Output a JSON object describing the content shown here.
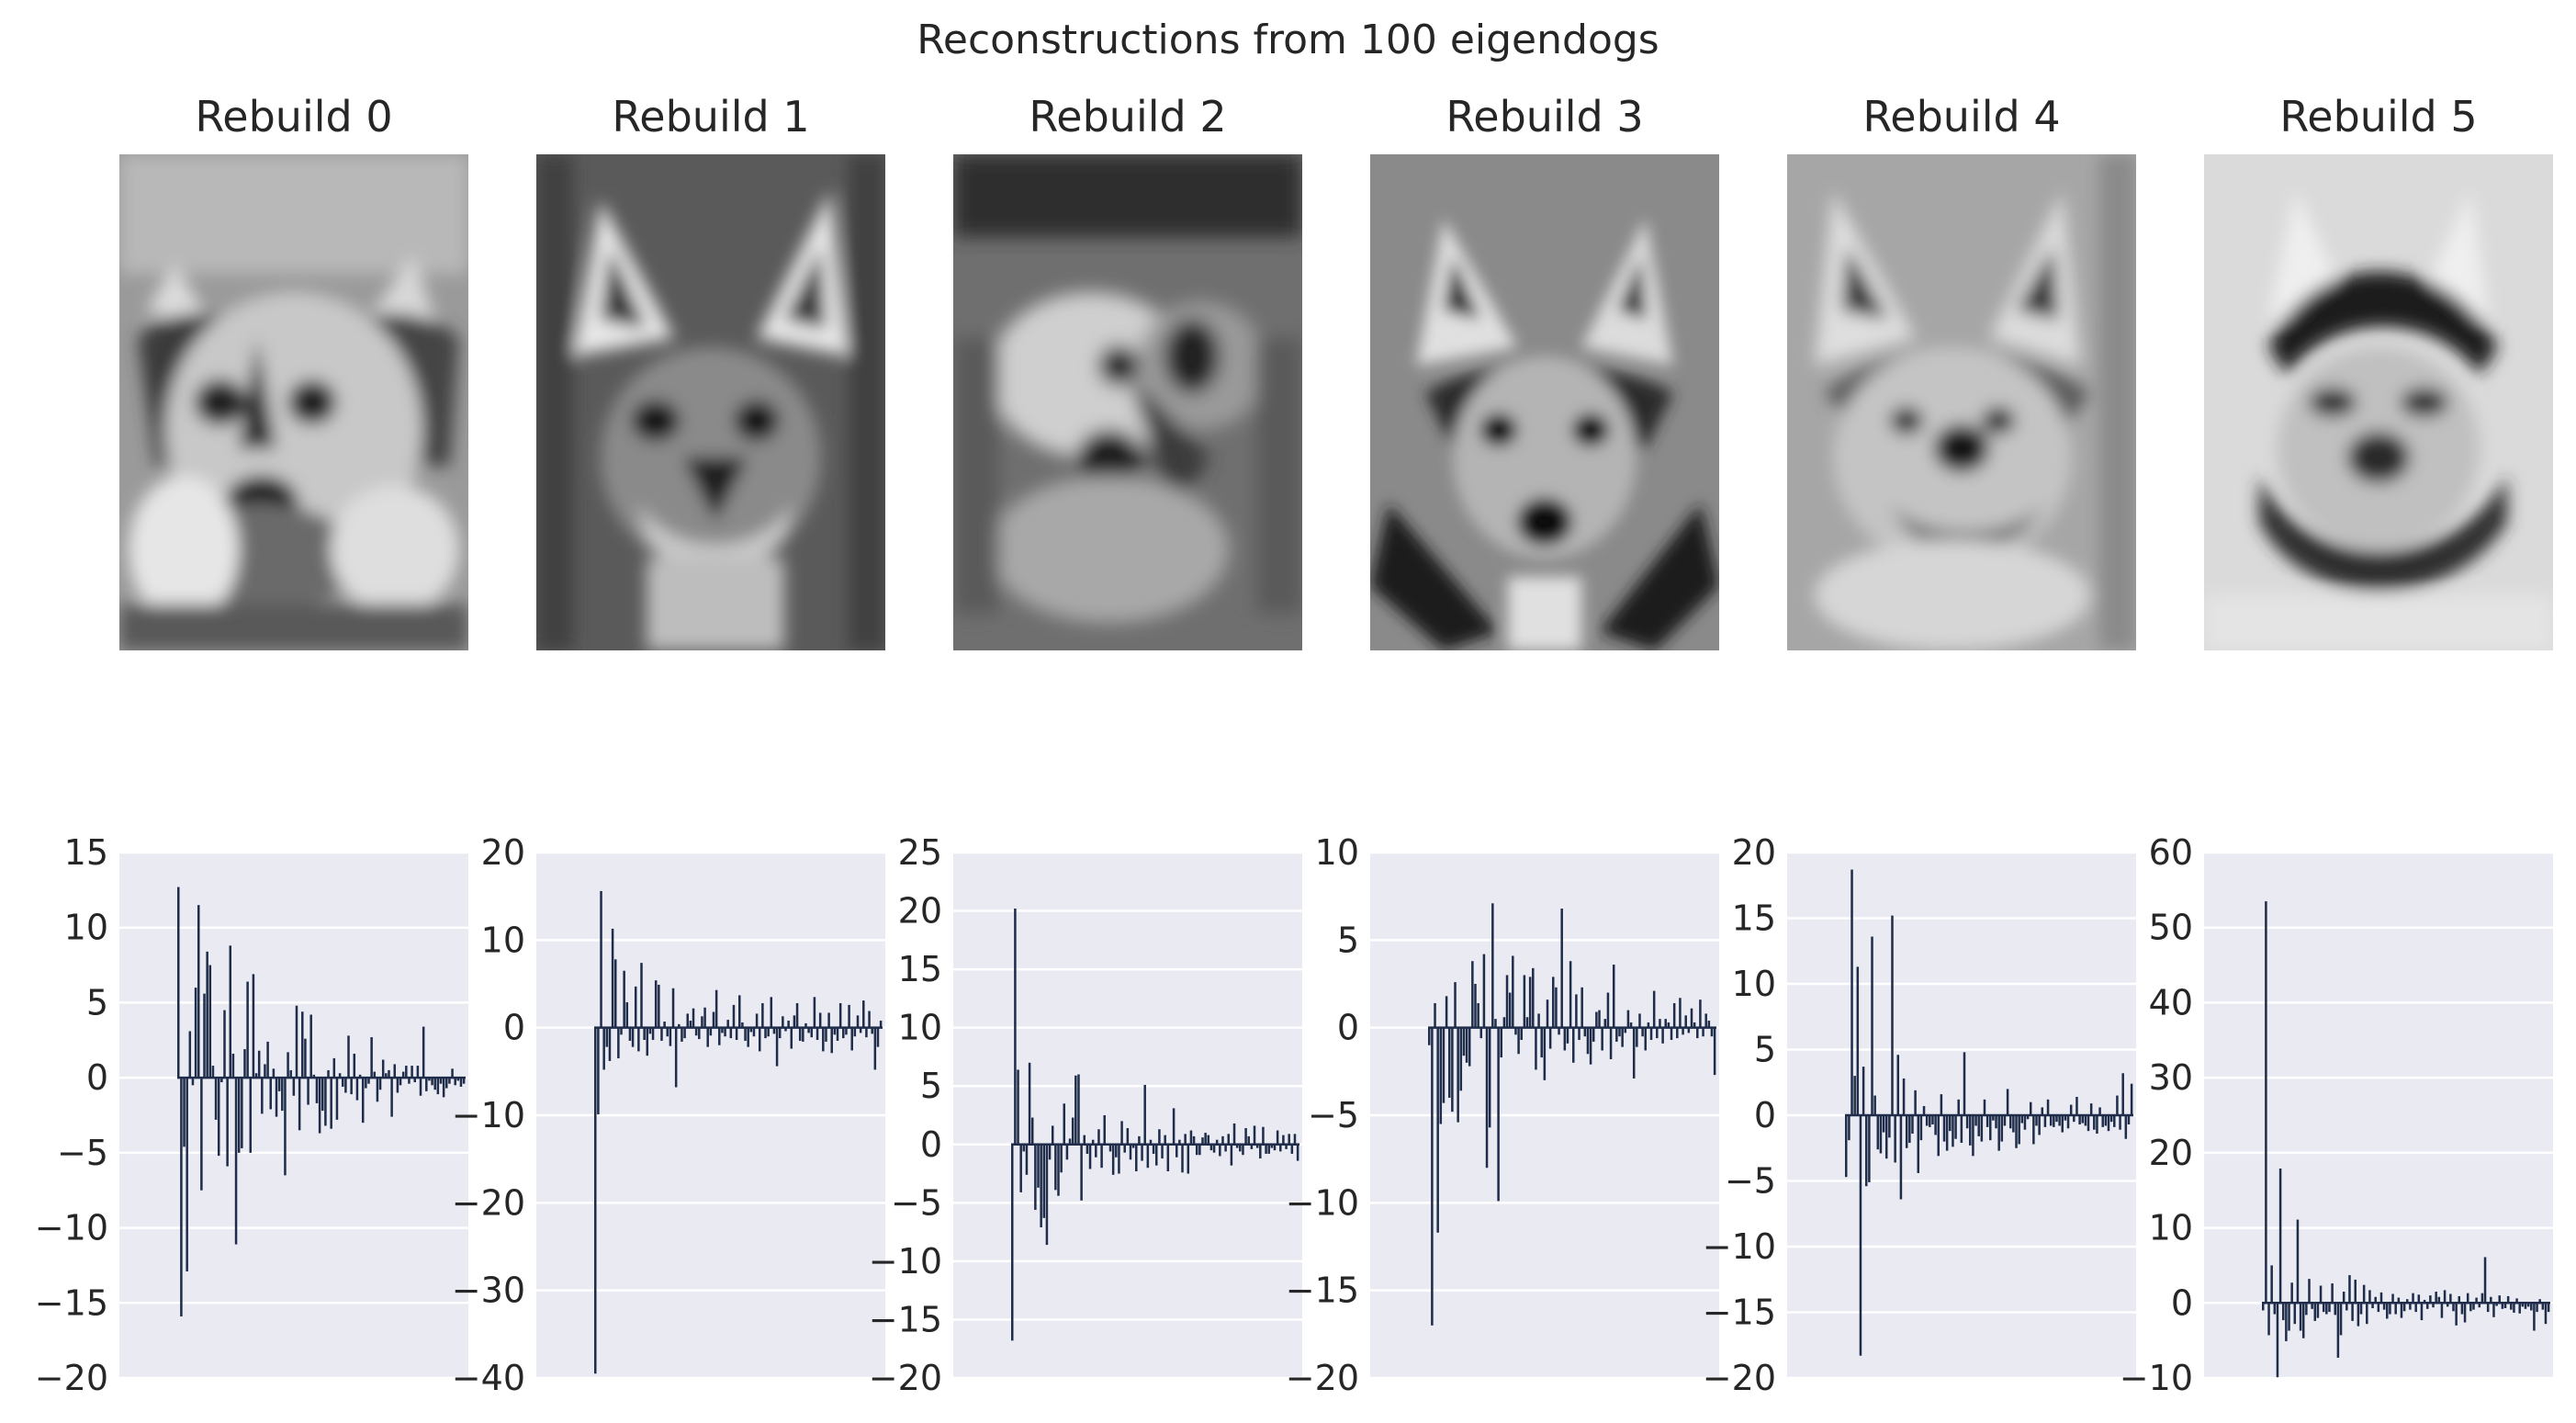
{
  "figure_title": "Reconstructions from 100 eigendogs",
  "rebuild_titles": [
    "Rebuild 0",
    "Rebuild 1",
    "Rebuild 2",
    "Rebuild 3",
    "Rebuild 4",
    "Rebuild 5"
  ],
  "colors": {
    "bar": "#1f2d4a",
    "axes_bg": "#eaeaf2",
    "grid": "#ffffff",
    "text": "#262626"
  },
  "chart_data": [
    {
      "type": "bar",
      "title": "",
      "xlabel": "",
      "ylabel": "",
      "ylim": [
        -20,
        15
      ],
      "yticks": [
        "15",
        "10",
        "5",
        "0",
        "−5",
        "−10",
        "−15",
        "−20"
      ],
      "grid": true,
      "values": [
        12.7,
        -15.9,
        -4.6,
        -12.9,
        3.1,
        -0.5,
        6.0,
        11.5,
        -7.5,
        5.6,
        8.4,
        7.5,
        0.8,
        -2.8,
        -5.2,
        -0.3,
        4.5,
        -5.9,
        8.8,
        1.6,
        -11.1,
        -5.0,
        -4.7,
        1.9,
        6.4,
        -5.0,
        6.9,
        0.3,
        1.8,
        -2.4,
        0.9,
        2.4,
        -2.1,
        0.6,
        -2.6,
        -0.9,
        -2.2,
        -6.5,
        1.7,
        0.5,
        -1.2,
        4.8,
        -3.5,
        4.4,
        2.6,
        -1.8,
        4.2,
        0.2,
        -1.7,
        -3.7,
        -2.2,
        -3.2,
        0.5,
        -3.4,
        1.3,
        -2.8,
        0.3,
        -0.6,
        -1.0,
        2.8,
        -1.1,
        1.6,
        -1.5,
        0.2,
        -3.0,
        -0.7,
        -0.4,
        2.7,
        0.4,
        -1.6,
        -0.8,
        1.2,
        0.3,
        0.5,
        -2.6,
        0.9,
        -1.0,
        -0.5,
        0.4,
        0.8,
        -0.4,
        0.8,
        -0.3,
        0.8,
        -1.2,
        3.4,
        -0.9,
        -0.2,
        -0.5,
        -0.8,
        -1.1,
        -0.4,
        -1.3,
        -0.7,
        -0.4,
        0.6,
        -0.5,
        -0.2,
        -0.6,
        -0.4
      ]
    },
    {
      "type": "bar",
      "title": "",
      "xlabel": "",
      "ylabel": "",
      "ylim": [
        -40,
        20
      ],
      "yticks": [
        "20",
        "10",
        "0",
        "−10",
        "−20",
        "−30",
        "−40"
      ],
      "grid": true,
      "values": [
        -39.5,
        -9.9,
        15.6,
        -4.8,
        -2.2,
        -3.8,
        11.3,
        7.8,
        -3.5,
        -0.8,
        6.5,
        2.9,
        -1.5,
        -2.2,
        4.7,
        -2.7,
        7.4,
        -1.4,
        -3.2,
        -0.7,
        -1.4,
        5.4,
        4.9,
        -1.5,
        0.7,
        -1.0,
        -2.1,
        4.5,
        -6.8,
        0.4,
        -1.6,
        -1.2,
        1.6,
        0.8,
        2.2,
        -0.9,
        -1.3,
        1.3,
        2.3,
        -2.2,
        -0.9,
        1.8,
        4.3,
        -2.0,
        -0.6,
        -1.0,
        0.9,
        -1.2,
        2.6,
        -1.4,
        3.7,
        0.6,
        -1.5,
        -2.2,
        -0.5,
        -1.0,
        1.6,
        -2.7,
        2.8,
        -1.2,
        -1.0,
        3.5,
        -0.7,
        -4.4,
        -1.2,
        1.3,
        -0.4,
        0.8,
        -2.4,
        1.4,
        2.8,
        -1.5,
        -1.6,
        0.5,
        -0.6,
        -1.1,
        3.5,
        -1.4,
        1.7,
        -2.7,
        -1.6,
        1.7,
        -2.9,
        -0.8,
        -1.5,
        2.8,
        -1.2,
        -0.8,
        2.6,
        -2.6,
        -1.0,
        1.4,
        -0.6,
        3.1,
        -1.1,
        1.9,
        -0.7,
        -4.8,
        -2.2,
        0.8
      ]
    },
    {
      "type": "bar",
      "title": "",
      "xlabel": "",
      "ylabel": "",
      "ylim": [
        -20,
        25
      ],
      "yticks": [
        "25",
        "20",
        "15",
        "10",
        "5",
        "0",
        "−5",
        "−10",
        "−15",
        "−20"
      ],
      "grid": true,
      "values": [
        -16.8,
        20.2,
        6.4,
        -4.1,
        -0.6,
        -2.6,
        7.0,
        2.3,
        -5.6,
        -3.7,
        -7.1,
        -6.3,
        -8.6,
        -1.3,
        1.6,
        -3.9,
        -4.4,
        -2.4,
        3.5,
        -1.3,
        0.5,
        2.3,
        5.9,
        6.0,
        -4.8,
        0.8,
        -0.8,
        -2.1,
        0.4,
        -1.1,
        1.3,
        -2.0,
        2.5,
        0.1,
        -0.6,
        -2.6,
        -1.1,
        -2.5,
        2.0,
        -0.7,
        1.4,
        -1.3,
        -0.3,
        -2.3,
        0.7,
        -1.4,
        5.1,
        -2.0,
        0.4,
        -0.8,
        -1.8,
        1.3,
        -1.2,
        0.8,
        -2.3,
        0.1,
        3.1,
        -1.1,
        0.4,
        -2.4,
        0.9,
        -2.5,
        1.2,
        0.7,
        -0.9,
        -0.9,
        0.6,
        1.0,
        0.8,
        -0.5,
        -0.7,
        0.4,
        -1.0,
        0.7,
        -0.6,
        0.9,
        -1.8,
        1.8,
        -0.3,
        -0.6,
        -0.9,
        1.4,
        0.7,
        -0.4,
        1.6,
        -0.3,
        -1.2,
        1.5,
        -0.8,
        -0.8,
        -0.3,
        -0.5,
        1.2,
        -0.6,
        0.8,
        -0.4,
        0.9,
        -0.8,
        0.9,
        -1.4
      ]
    },
    {
      "type": "bar",
      "title": "",
      "xlabel": "",
      "ylabel": "",
      "ylim": [
        -20,
        10
      ],
      "yticks": [
        "10",
        "5",
        "0",
        "−5",
        "−10",
        "−15",
        "−20"
      ],
      "grid": true,
      "values": [
        -1.0,
        -17.0,
        1.4,
        -11.7,
        -5.5,
        -4.3,
        1.8,
        -4.0,
        -4.8,
        2.6,
        -5.4,
        -3.6,
        -1.6,
        -2.0,
        -2.2,
        3.8,
        2.5,
        1.4,
        -0.6,
        4.2,
        -8.0,
        -5.7,
        7.1,
        0.5,
        -9.9,
        -1.7,
        0.6,
        3.0,
        2.0,
        4.1,
        -0.4,
        -1.5,
        -0.7,
        3.0,
        0.6,
        2.9,
        3.4,
        -2.4,
        0.8,
        -1.7,
        -3.0,
        1.6,
        -1.2,
        2.9,
        2.3,
        -0.4,
        6.8,
        -1.3,
        -0.9,
        3.8,
        -2.0,
        1.9,
        -0.7,
        2.3,
        -0.5,
        -1.5,
        -2.1,
        -0.8,
        0.9,
        1.0,
        -1.3,
        0.5,
        2.0,
        -1.8,
        3.6,
        -0.8,
        -0.5,
        -1.1,
        -0.3,
        1.0,
        0.3,
        -2.9,
        -1.1,
        0.8,
        -0.5,
        -1.3,
        0.3,
        -0.7,
        2.1,
        -0.6,
        0.5,
        -0.9,
        0.5,
        0.3,
        -0.7,
        1.4,
        -0.6,
        1.7,
        -0.4,
        0.7,
        -0.3,
        1.1,
        0.3,
        -0.6,
        1.6,
        -0.5,
        0.8,
        0.4,
        -0.5,
        -2.7
      ]
    },
    {
      "type": "bar",
      "title": "",
      "xlabel": "",
      "ylabel": "",
      "ylim": [
        -20,
        20
      ],
      "yticks": [
        "20",
        "15",
        "10",
        "5",
        "0",
        "−5",
        "−10",
        "−15",
        "−20"
      ],
      "grid": true,
      "values": [
        -4.7,
        -1.9,
        18.7,
        3.0,
        11.3,
        -18.3,
        3.7,
        -5.4,
        -5.1,
        13.6,
        1.5,
        -2.6,
        -2.9,
        -1.3,
        -3.3,
        -1.7,
        15.2,
        -3.6,
        4.6,
        -6.4,
        2.8,
        -2.5,
        -2.1,
        -1.4,
        1.9,
        -4.4,
        -1.9,
        0.7,
        -0.8,
        -0.9,
        -0.7,
        -1.5,
        -3.1,
        1.6,
        -2.0,
        -2.7,
        -1.2,
        -2.4,
        -1.8,
        1.2,
        -2.1,
        4.8,
        -1.0,
        -2.3,
        -3.1,
        -0.8,
        -1.6,
        -2.0,
        1.2,
        -0.9,
        -1.9,
        -0.4,
        -1.0,
        -2.7,
        -2.0,
        -0.8,
        2.0,
        -1.0,
        -1.3,
        -2.5,
        -2.2,
        -0.6,
        -1.1,
        -0.3,
        1.0,
        -2.2,
        -0.8,
        -1.5,
        0.6,
        -0.9,
        1.2,
        -0.8,
        -0.9,
        -0.5,
        -0.8,
        -1.3,
        -0.4,
        -1.0,
        0.8,
        -0.5,
        1.4,
        -0.7,
        -0.6,
        -0.8,
        -1.2,
        0.9,
        -1.1,
        -1.4,
        0.6,
        -0.9,
        -0.8,
        -1.2,
        -0.5,
        -0.9,
        1.5,
        -1.1,
        3.2,
        -1.8,
        -0.7,
        2.4
      ]
    },
    {
      "type": "bar",
      "title": "",
      "xlabel": "",
      "ylabel": "",
      "ylim": [
        -10,
        60
      ],
      "yticks": [
        "60",
        "50",
        "40",
        "30",
        "20",
        "10",
        "0",
        "−10"
      ],
      "grid": true,
      "values": [
        -1.0,
        53.5,
        -4.3,
        5.0,
        -1.5,
        -9.9,
        17.9,
        -2.3,
        -5.1,
        -3.7,
        2.7,
        -2.8,
        11.1,
        -3.7,
        -4.7,
        -1.6,
        3.2,
        -0.8,
        -2.4,
        -2.0,
        2.3,
        -1.2,
        -1.5,
        -1.2,
        2.6,
        -1.6,
        -7.3,
        -4.3,
        1.5,
        -1.0,
        3.7,
        -2.4,
        3.1,
        -3.1,
        -1.5,
        2.4,
        -2.8,
        1.7,
        -0.7,
        0.8,
        -1.2,
        1.4,
        -0.9,
        -2.1,
        -1.5,
        1.2,
        -1.5,
        0.7,
        -2.0,
        -1.1,
        0.5,
        -0.9,
        1.3,
        -1.2,
        1.1,
        -2.3,
        0.4,
        -0.8,
        1.0,
        -0.6,
        1.5,
        0.8,
        -2.0,
        1.7,
        -0.5,
        1.2,
        -1.1,
        -3.0,
        0.9,
        -1.5,
        -2.6,
        1.3,
        -1.1,
        -0.9,
        0.7,
        -0.6,
        1.3,
        6.1,
        -1.2,
        0.8,
        -1.9,
        -0.4,
        1.0,
        -0.8,
        -0.7,
        0.9,
        -0.9,
        -1.3,
        0.6,
        -1.4,
        -0.5,
        -0.8,
        -0.5,
        -1.0,
        -3.7,
        -1.2,
        0.5,
        -0.9,
        -2.8,
        -1.2
      ]
    }
  ]
}
